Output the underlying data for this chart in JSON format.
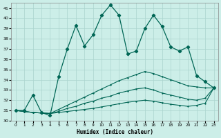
{
  "xlabel": "Humidex (Indice chaleur)",
  "bg_color": "#cceee8",
  "grid_color": "#aad4ce",
  "line_color": "#006655",
  "xlim": [
    -0.5,
    23.5
  ],
  "ylim": [
    30,
    41.5
  ],
  "xticks": [
    0,
    1,
    2,
    3,
    4,
    5,
    6,
    7,
    8,
    9,
    10,
    11,
    12,
    13,
    14,
    15,
    16,
    17,
    18,
    19,
    20,
    21,
    22,
    23
  ],
  "yticks": [
    30,
    31,
    32,
    33,
    34,
    35,
    36,
    37,
    38,
    39,
    40,
    41
  ],
  "main_x": [
    0,
    1,
    2,
    3,
    4,
    5,
    6,
    7,
    8,
    9,
    10,
    11,
    12,
    13,
    14,
    15,
    16,
    17,
    18,
    19,
    20,
    21,
    22,
    23
  ],
  "main_y": [
    31.0,
    31.0,
    32.5,
    30.8,
    30.5,
    34.3,
    37.0,
    39.3,
    37.3,
    38.4,
    40.3,
    41.3,
    40.3,
    36.5,
    36.8,
    39.0,
    40.3,
    39.2,
    37.2,
    36.8,
    37.2,
    34.4,
    33.8,
    33.2
  ],
  "line2_x": [
    0,
    1,
    2,
    3,
    4,
    5,
    6,
    7,
    8,
    9,
    10,
    11,
    12,
    13,
    14,
    15,
    16,
    17,
    18,
    19,
    20,
    21,
    22,
    23
  ],
  "line2_y": [
    31.0,
    30.9,
    30.8,
    30.75,
    30.7,
    31.1,
    31.5,
    31.9,
    32.3,
    32.7,
    33.1,
    33.5,
    33.9,
    34.2,
    34.5,
    34.8,
    34.6,
    34.3,
    34.0,
    33.7,
    33.4,
    33.3,
    33.2,
    33.2
  ],
  "line3_x": [
    0,
    1,
    2,
    3,
    4,
    5,
    6,
    7,
    8,
    9,
    10,
    11,
    12,
    13,
    14,
    15,
    16,
    17,
    18,
    19,
    20,
    21,
    22,
    23
  ],
  "line3_y": [
    31.0,
    30.9,
    30.8,
    30.75,
    30.7,
    30.9,
    31.2,
    31.4,
    31.7,
    31.9,
    32.2,
    32.4,
    32.7,
    32.9,
    33.1,
    33.2,
    33.0,
    32.7,
    32.5,
    32.3,
    32.1,
    32.0,
    32.2,
    33.2
  ],
  "line4_x": [
    0,
    1,
    2,
    3,
    4,
    5,
    6,
    7,
    8,
    9,
    10,
    11,
    12,
    13,
    14,
    15,
    16,
    17,
    18,
    19,
    20,
    21,
    22,
    23
  ],
  "line4_y": [
    31.0,
    30.9,
    30.8,
    30.75,
    30.7,
    30.8,
    30.9,
    31.0,
    31.1,
    31.2,
    31.35,
    31.5,
    31.65,
    31.8,
    31.9,
    32.0,
    31.9,
    31.75,
    31.6,
    31.5,
    31.4,
    31.5,
    31.7,
    33.2
  ]
}
